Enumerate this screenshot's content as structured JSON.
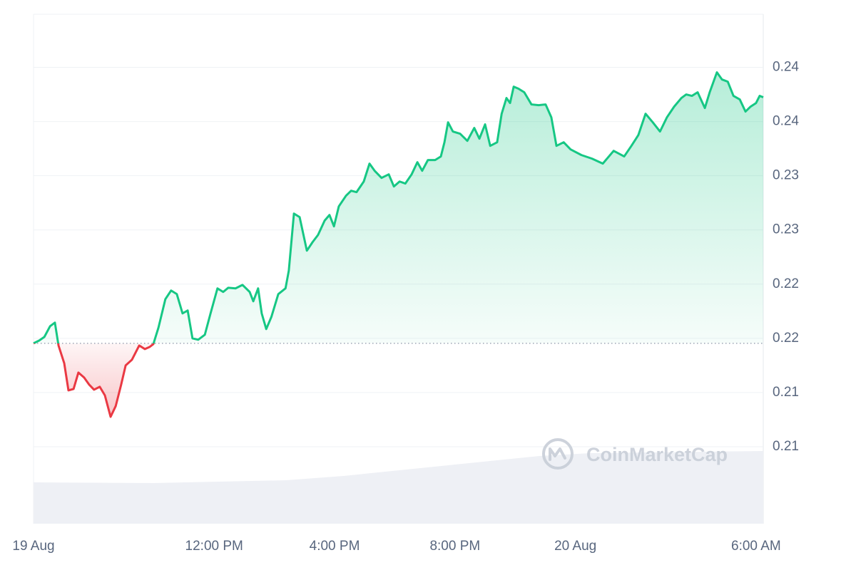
{
  "chart_data": {
    "type": "line",
    "watermark": "CoinMarketCap",
    "x": [
      0,
      0.19,
      0.36,
      0.55,
      0.71,
      0.83,
      1.02,
      1.16,
      1.33,
      1.49,
      1.68,
      1.85,
      2.01,
      2.2,
      2.37,
      2.56,
      2.73,
      2.91,
      3.06,
      3.27,
      3.51,
      3.7,
      3.86,
      3.98,
      4.15,
      4.38,
      4.57,
      4.76,
      4.95,
      5.12,
      5.28,
      5.47,
      5.69,
      5.88,
      6.11,
      6.3,
      6.47,
      6.71,
      6.94,
      7.18,
      7.3,
      7.46,
      7.58,
      7.73,
      7.9,
      8.13,
      8.37,
      8.48,
      8.65,
      8.84,
      9.08,
      9.27,
      9.45,
      9.67,
      9.83,
      9.98,
      10.14,
      10.38,
      10.55,
      10.73,
      10.97,
      11.16,
      11.33,
      11.56,
      11.8,
      11.97,
      12.16,
      12.35,
      12.56,
      12.75,
      12.91,
      13.1,
      13.34,
      13.53,
      13.65,
      13.77,
      13.93,
      14.17,
      14.41,
      14.64,
      14.81,
      15.0,
      15.17,
      15.4,
      15.55,
      15.71,
      15.83,
      15.95,
      16.11,
      16.3,
      16.54,
      16.78,
      17.01,
      17.2,
      17.37,
      17.61,
      17.84,
      18.2,
      18.55,
      18.91,
      19.27,
      19.62,
      19.86,
      20.09,
      20.33,
      20.57,
      20.81,
      21.04,
      21.28,
      21.52,
      21.68,
      21.87,
      22.06,
      22.3,
      22.46,
      22.7,
      22.87,
      23.06,
      23.25,
      23.46,
      23.65,
      23.82,
      24.0,
      24.12,
      24.24
    ],
    "series": [
      {
        "color": "#16c784",
        "values": [
          0.21704,
          0.2173,
          0.21763,
          0.21862,
          0.21895,
          0.21684,
          0.2152,
          0.2127,
          0.21283,
          0.21434,
          0.21388,
          0.21322,
          0.21276,
          0.21303,
          0.21224,
          0.21026,
          0.21125,
          0.21322,
          0.215,
          0.21553,
          0.21684,
          0.21651,
          0.21671,
          0.21697,
          0.21849,
          0.22112,
          0.22191,
          0.22158,
          0.2198,
          0.22007,
          0.2175,
          0.21737,
          0.21783,
          0.2198,
          0.22211,
          0.22178,
          0.22217,
          0.22211,
          0.22243,
          0.22178,
          0.22092,
          0.22211,
          0.2198,
          0.21836,
          0.21947,
          0.22158,
          0.22211,
          0.22375,
          0.22901,
          0.22868,
          0.22559,
          0.22638,
          0.22704,
          0.22836,
          0.22888,
          0.22783,
          0.22967,
          0.23066,
          0.23112,
          0.23099,
          0.23197,
          0.23362,
          0.23296,
          0.2323,
          0.23263,
          0.23151,
          0.23197,
          0.23178,
          0.23263,
          0.23375,
          0.23296,
          0.23395,
          0.23395,
          0.23428,
          0.23559,
          0.23743,
          0.23658,
          0.23638,
          0.23572,
          0.23691,
          0.23592,
          0.23724,
          0.23526,
          0.23559,
          0.23822,
          0.23967,
          0.23921,
          0.24072,
          0.24053,
          0.2402,
          0.23908,
          0.23901,
          0.23908,
          0.23789,
          0.23526,
          0.23559,
          0.23493,
          0.23441,
          0.23408,
          0.23362,
          0.2348,
          0.23428,
          0.23526,
          0.23625,
          0.23822,
          0.23743,
          0.23658,
          0.23789,
          0.23888,
          0.23967,
          0.24,
          0.23987,
          0.2402,
          0.23875,
          0.2402,
          0.24204,
          0.24138,
          0.24118,
          0.23987,
          0.23954,
          0.23842,
          0.23888,
          0.23921,
          0.23987,
          0.23974
        ]
      }
    ],
    "down_color": "#ea3943",
    "xlim": [
      0,
      24.24
    ],
    "ylim": [
      0.2004,
      0.2474
    ],
    "yticks": [
      {
        "value": 0.2075,
        "label": "0.21"
      },
      {
        "value": 0.2125,
        "label": "0.21"
      },
      {
        "value": 0.2175,
        "label": "0.22"
      },
      {
        "value": 0.2225,
        "label": "0.22"
      },
      {
        "value": 0.2275,
        "label": "0.23"
      },
      {
        "value": 0.2325,
        "label": "0.23"
      },
      {
        "value": 0.2375,
        "label": "0.24"
      },
      {
        "value": 0.2425,
        "label": "0.24"
      }
    ],
    "xticks": [
      {
        "value": 0,
        "label": "19 Aug"
      },
      {
        "value": 6,
        "label": "12:00 PM"
      },
      {
        "value": 10,
        "label": "4:00 PM"
      },
      {
        "value": 14,
        "label": "8:00 PM"
      },
      {
        "value": 18,
        "label": "20 Aug"
      },
      {
        "value": 24,
        "label": "6:00 AM"
      }
    ],
    "grid": true,
    "volume": {
      "color": "#eef0f5",
      "x": [
        0,
        4,
        8.4,
        10.3,
        14,
        16.8,
        18.5,
        24.24
      ],
      "values": [
        58,
        57,
        61,
        67,
        83,
        95,
        99,
        102
      ]
    }
  }
}
